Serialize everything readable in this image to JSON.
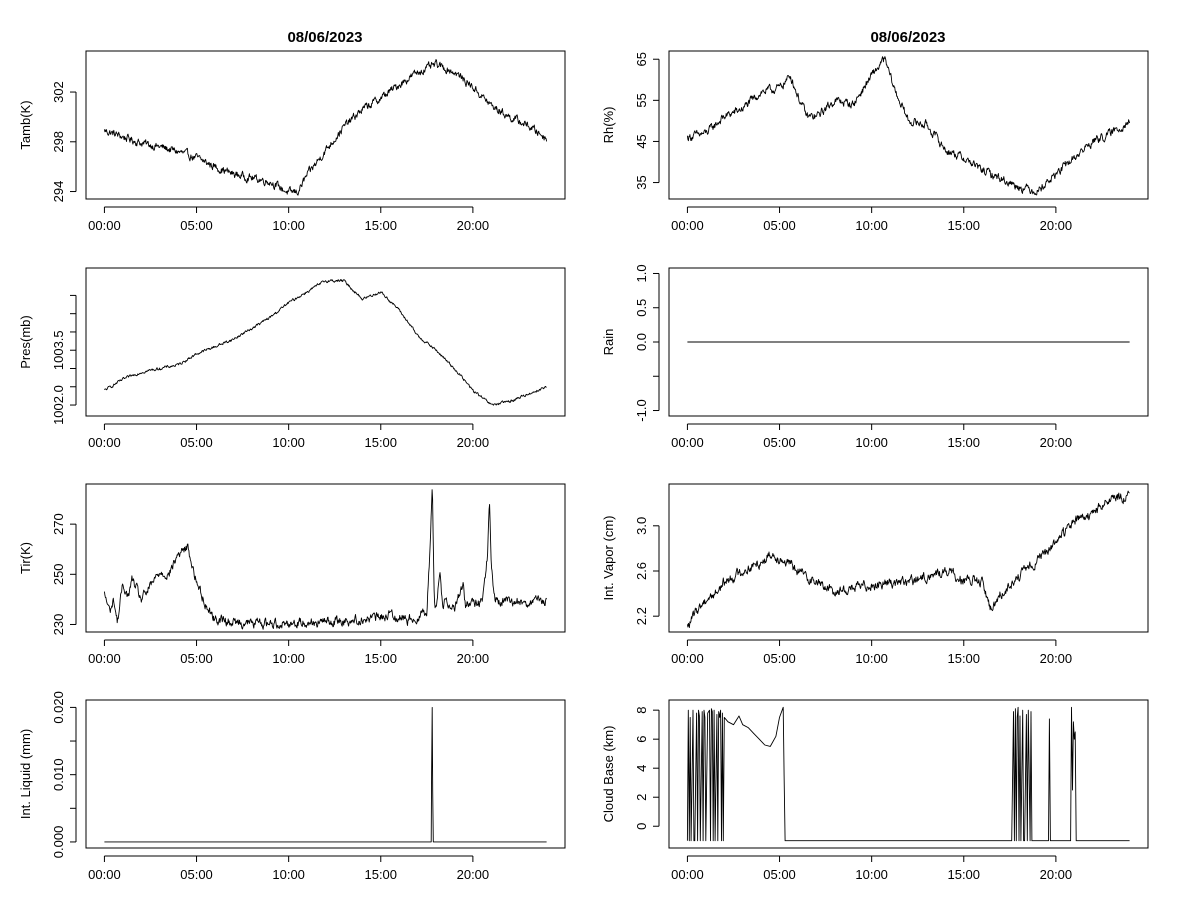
{
  "figure": {
    "left_title": "08/06/2023",
    "right_title": "08/06/2023",
    "x_tick_labels": [
      "00:00",
      "05:00",
      "10:00",
      "15:00",
      "20:00"
    ]
  },
  "chart_data": [
    {
      "id": "tamb",
      "type": "line",
      "column": "left",
      "row": 0,
      "ylabel": "Tamb(K)",
      "xlabel": "",
      "title": "08/06/2023",
      "x_unit": "hours",
      "xlim": [
        -1,
        25
      ],
      "ylim": [
        293.4,
        305.3
      ],
      "yticks": [
        294,
        298,
        302
      ],
      "ytick_labels": [
        "294",
        "298",
        "302"
      ],
      "noise": 0.25,
      "series": [
        {
          "name": "Tamb",
          "x": [
            0,
            1,
            2,
            3,
            4,
            5,
            6,
            7,
            8,
            9,
            10,
            10.5,
            11,
            12,
            13,
            14,
            15,
            16,
            17,
            18,
            19,
            20,
            21,
            22,
            23,
            24
          ],
          "values": [
            298.9,
            298.4,
            297.9,
            297.6,
            297.2,
            296.7,
            296.0,
            295.4,
            295.1,
            294.8,
            293.9,
            294.0,
            295.3,
            297.3,
            299.2,
            300.6,
            301.5,
            302.6,
            303.6,
            304.2,
            303.6,
            302.4,
            300.9,
            300.0,
            299.3,
            298.3
          ]
        }
      ]
    },
    {
      "id": "rh",
      "type": "line",
      "column": "right",
      "row": 0,
      "ylabel": "Rh(%)",
      "xlabel": "",
      "title": "08/06/2023",
      "x_unit": "hours",
      "xlim": [
        -1,
        25
      ],
      "ylim": [
        31,
        67
      ],
      "yticks": [
        35,
        45,
        55,
        65
      ],
      "ytick_labels": [
        "35",
        "45",
        "55",
        "65"
      ],
      "noise": 0.8,
      "series": [
        {
          "name": "Rh",
          "x": [
            0,
            1,
            2,
            3,
            4,
            5,
            5.6,
            6,
            6.5,
            7,
            8,
            9,
            10,
            10.7,
            11.3,
            12,
            13,
            14,
            15,
            16,
            17,
            18,
            19,
            20,
            21,
            22,
            23,
            24
          ],
          "values": [
            46,
            47,
            51,
            53,
            57,
            58,
            61,
            56,
            51,
            51,
            55,
            54,
            61,
            65,
            57,
            50,
            49,
            43,
            41,
            38,
            36,
            34,
            33,
            37,
            41,
            45,
            47,
            50
          ]
        }
      ]
    },
    {
      "id": "pres",
      "type": "line",
      "column": "left",
      "row": 1,
      "ylabel": "Pres(mb)",
      "xlabel": "",
      "title": "",
      "x_unit": "hours",
      "xlim": [
        -1,
        25
      ],
      "ylim": [
        1001.7,
        1005.75
      ],
      "yticks": [
        1002.0,
        1002.5,
        1003.0,
        1003.5,
        1004.0,
        1004.5,
        1005.0
      ],
      "ytick_labels": [
        "1002.0",
        "",
        "",
        "1003.5",
        "",
        "",
        ""
      ],
      "noise": 0.03,
      "series": [
        {
          "name": "Pres",
          "x": [
            0,
            1,
            2,
            3,
            4,
            5,
            6,
            7,
            8,
            9,
            10,
            11,
            12,
            13,
            14,
            15,
            16,
            17,
            18,
            19,
            20,
            21,
            22,
            23,
            24
          ],
          "values": [
            1002.4,
            1002.7,
            1002.9,
            1003.0,
            1003.1,
            1003.4,
            1003.6,
            1003.8,
            1004.1,
            1004.4,
            1004.8,
            1005.1,
            1005.4,
            1005.4,
            1004.9,
            1005.1,
            1004.6,
            1003.9,
            1003.5,
            1003.0,
            1002.4,
            1002.0,
            1002.1,
            1002.3,
            1002.5
          ]
        }
      ]
    },
    {
      "id": "rain",
      "type": "line",
      "column": "right",
      "row": 1,
      "ylabel": "Rain",
      "xlabel": "",
      "title": "",
      "x_unit": "hours",
      "xlim": [
        -1,
        25
      ],
      "ylim": [
        -1.08,
        1.08
      ],
      "yticks": [
        -1.0,
        -0.5,
        0.0,
        0.5,
        1.0
      ],
      "ytick_labels": [
        "-1.0",
        "",
        "0.0",
        "0.5",
        "1.0"
      ],
      "noise": 0,
      "series": [
        {
          "name": "Rain",
          "x": [
            0,
            24
          ],
          "values": [
            0,
            0
          ]
        }
      ]
    },
    {
      "id": "tir",
      "type": "line",
      "column": "left",
      "row": 2,
      "ylabel": "Tir(K)",
      "xlabel": "",
      "title": "",
      "x_unit": "hours",
      "xlim": [
        -1,
        25
      ],
      "ylim": [
        227,
        286
      ],
      "yticks": [
        230,
        250,
        270
      ],
      "ytick_labels": [
        "230",
        "250",
        "270"
      ],
      "noise": 1.5,
      "series": [
        {
          "name": "Tir",
          "x": [
            0,
            0.3,
            0.5,
            0.7,
            1,
            1.3,
            1.5,
            2,
            2.5,
            3,
            3.5,
            4,
            4.5,
            5,
            5.5,
            6,
            7,
            8,
            9,
            10,
            11,
            12,
            13,
            14,
            15,
            15.5,
            16,
            16.5,
            17,
            17.5,
            17.7,
            17.8,
            17.9,
            18,
            18.2,
            18.4,
            18.5,
            18.8,
            19,
            19.5,
            19.6,
            19.7,
            20,
            20.5,
            20.8,
            20.9,
            21,
            21.2,
            21.5,
            22,
            23,
            24
          ],
          "values": [
            242,
            235,
            240,
            231,
            246,
            241,
            248,
            240,
            245,
            251,
            250,
            258,
            261,
            247,
            238,
            232,
            231,
            230.5,
            230.5,
            230.5,
            231,
            231,
            231.5,
            232,
            233,
            234,
            233,
            232,
            233,
            236,
            265,
            285,
            240,
            236,
            251,
            236,
            240,
            238,
            237,
            246,
            237,
            238,
            238,
            239,
            258,
            279,
            252,
            240,
            239,
            239,
            239,
            239
          ]
        }
      ]
    },
    {
      "id": "vapor",
      "type": "line",
      "column": "right",
      "row": 2,
      "ylabel": "Int. Vapor (cm)",
      "xlabel": "",
      "title": "",
      "x_unit": "hours",
      "xlim": [
        -1,
        25
      ],
      "ylim": [
        2.06,
        3.37
      ],
      "yticks": [
        2.2,
        2.6,
        3.0
      ],
      "ytick_labels": [
        "2.2",
        "2.6",
        "3.0"
      ],
      "noise": 0.035,
      "series": [
        {
          "name": "Int. Vapor",
          "x": [
            0,
            0.5,
            1,
            1.5,
            2,
            3,
            4,
            4.5,
            5,
            6,
            7,
            8,
            9,
            10,
            11,
            12,
            13,
            14,
            15,
            16,
            16.5,
            17,
            18,
            19,
            20,
            21,
            22,
            23,
            24
          ],
          "values": [
            2.1,
            2.25,
            2.35,
            2.4,
            2.5,
            2.6,
            2.68,
            2.75,
            2.72,
            2.6,
            2.5,
            2.42,
            2.45,
            2.48,
            2.5,
            2.5,
            2.55,
            2.6,
            2.52,
            2.5,
            2.25,
            2.4,
            2.55,
            2.7,
            2.85,
            3.05,
            3.1,
            3.25,
            3.25
          ]
        }
      ]
    },
    {
      "id": "liquid",
      "type": "line",
      "column": "left",
      "row": 3,
      "ylabel": "Int. Liquid (mm)",
      "xlabel": "",
      "title": "",
      "x_unit": "hours",
      "xlim": [
        -1,
        25
      ],
      "ylim": [
        -0.0009,
        0.0211
      ],
      "yticks": [
        0.0,
        0.005,
        0.01,
        0.015,
        0.02
      ],
      "ytick_labels": [
        "0.000",
        "",
        "0.010",
        "",
        "0.020"
      ],
      "noise": 0,
      "series": [
        {
          "name": "Int. Liquid",
          "x": [
            0,
            17.74,
            17.76,
            17.79,
            17.82,
            17.85,
            24
          ],
          "values": [
            0,
            0,
            0.0102,
            0.02,
            0.0075,
            0,
            0
          ]
        }
      ]
    },
    {
      "id": "cloudbase",
      "type": "line",
      "column": "right",
      "row": 3,
      "ylabel": "Cloud Base (km)",
      "xlabel": "",
      "title": "",
      "x_unit": "hours",
      "xlim": [
        -1,
        25
      ],
      "ylim": [
        -1.5,
        8.7
      ],
      "yticks": [
        0,
        2,
        4,
        6,
        8
      ],
      "ytick_labels": [
        "0",
        "2",
        "4",
        "6",
        "8"
      ],
      "noise": 0,
      "series": [
        {
          "name": "Cloud Base",
          "x": [
            0,
            0.05,
            0.1,
            0.15,
            0.2,
            0.25,
            0.3,
            0.35,
            0.4,
            0.5,
            0.55,
            0.6,
            0.65,
            0.7,
            0.8,
            0.85,
            0.9,
            0.95,
            1.0,
            1.1,
            1.2,
            1.25,
            1.3,
            1.35,
            1.4,
            1.45,
            1.5,
            1.6,
            1.65,
            1.7,
            1.75,
            1.8,
            1.85,
            1.9,
            1.95,
            2.0,
            2.2,
            2.5,
            2.8,
            3.0,
            3.3,
            3.6,
            3.9,
            4.2,
            4.5,
            4.8,
            5.0,
            5.2,
            5.25,
            5.3,
            5.35,
            17.6,
            17.7,
            17.75,
            17.8,
            17.85,
            17.9,
            17.95,
            18.0,
            18.05,
            18.1,
            18.2,
            18.25,
            18.3,
            18.4,
            18.45,
            18.5,
            18.6,
            18.65,
            18.7,
            18.75,
            19.6,
            19.65,
            19.7,
            19.75,
            20.8,
            20.85,
            20.9,
            20.95,
            21.0,
            21.05,
            21.1,
            21.15,
            24
          ],
          "values": [
            -1,
            8,
            -1,
            7.5,
            -1,
            3,
            8,
            -1,
            -1,
            7.8,
            -1,
            8,
            7.6,
            -1,
            7.9,
            -1,
            8,
            7.5,
            -1,
            7.8,
            8,
            -1,
            8.1,
            7.9,
            -1,
            8,
            -1,
            7.7,
            -1,
            7.9,
            7.5,
            8,
            -1,
            7.8,
            -1,
            7.5,
            7.2,
            7.0,
            7.6,
            7.0,
            6.8,
            6.4,
            6.0,
            5.6,
            5.5,
            6.2,
            7.5,
            8.2,
            3.5,
            -1,
            -1,
            -1,
            7.9,
            -1,
            8.1,
            -1,
            7.5,
            8.2,
            -1,
            7.6,
            -1,
            8,
            -1,
            -1,
            7.7,
            -1,
            8,
            -1,
            7.9,
            -1,
            -1,
            -1,
            7.4,
            -1,
            -1,
            -1,
            8.2,
            2.5,
            7.2,
            6.0,
            6.5,
            -1,
            -1,
            -1
          ]
        }
      ]
    }
  ]
}
